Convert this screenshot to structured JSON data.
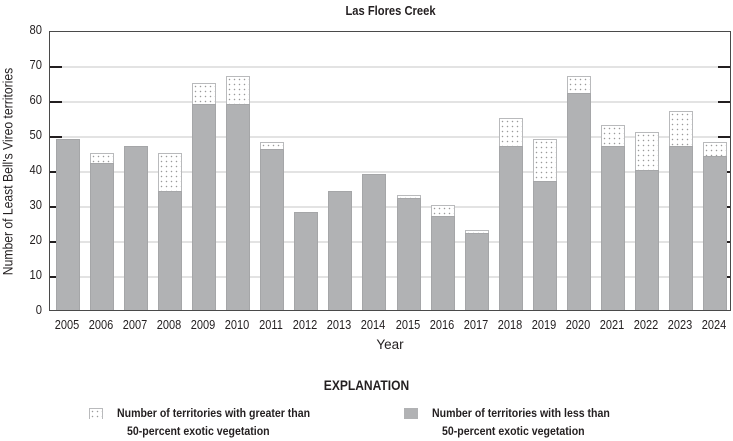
{
  "chart_data": {
    "type": "bar",
    "stacked": true,
    "title": "Las Flores Creek",
    "xlabel": "Year",
    "ylabel": "Number of Least Bell's Vireo territories",
    "ylim": [
      0,
      80
    ],
    "yticks": [
      0,
      10,
      20,
      30,
      40,
      50,
      60,
      70,
      80
    ],
    "grid": true,
    "categories": [
      "2005",
      "2006",
      "2007",
      "2008",
      "2009",
      "2010",
      "2011",
      "2012",
      "2013",
      "2014",
      "2015",
      "2016",
      "2017",
      "2018",
      "2019",
      "2020",
      "2021",
      "2022",
      "2023",
      "2024"
    ],
    "series": [
      {
        "name": "Number of territories with less than 50-percent exotic vegetation",
        "color": "#b1b2b4",
        "values": [
          49,
          42,
          47,
          34,
          59,
          59,
          46,
          28,
          34,
          39,
          32,
          27,
          22,
          47,
          37,
          62,
          47,
          40,
          47,
          44
        ]
      },
      {
        "name": "Number of territories with greater than 50-percent exotic vegetation",
        "pattern": "stippled",
        "values": [
          0,
          3,
          0,
          11,
          6,
          8,
          2,
          0,
          0,
          0,
          1,
          3,
          1,
          8,
          12,
          5,
          6,
          11,
          10,
          4
        ]
      }
    ],
    "totals": [
      49,
      45,
      47,
      45,
      65,
      67,
      48,
      28,
      34,
      39,
      33,
      30,
      23,
      55,
      49,
      67,
      53,
      51,
      57,
      48
    ],
    "legend_position": "bottom"
  },
  "legend": {
    "heading": "EXPLANATION",
    "items": [
      {
        "line1": "Number of territories with greater than",
        "line2": "50-percent exotic vegetation"
      },
      {
        "line1": "Number of territories with less than",
        "line2": "50-percent exotic vegetation"
      }
    ]
  }
}
